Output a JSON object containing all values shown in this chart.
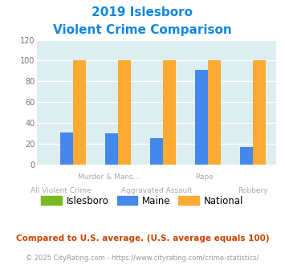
{
  "title_line1": "2019 Islesboro",
  "title_line2": "Violent Crime Comparison",
  "islesboro_values": [
    0,
    0,
    0,
    0,
    0
  ],
  "maine_values": [
    31,
    30,
    25,
    91,
    17
  ],
  "national_values": [
    100,
    100,
    100,
    100,
    100
  ],
  "islesboro_color": "#77bb22",
  "maine_color": "#4488ee",
  "national_color": "#ffaa33",
  "ylim": [
    0,
    120
  ],
  "yticks": [
    0,
    20,
    40,
    60,
    80,
    100,
    120
  ],
  "bg_color": "#ddeef0",
  "fig_bg": "#ffffff",
  "title_color": "#1188dd",
  "label_color": "#aaaaaa",
  "footer_note": "Compared to U.S. average. (U.S. average equals 100)",
  "footer_url": "© 2025 CityRating.com - https://www.cityrating.com/crime-statistics/",
  "bar_width": 0.28,
  "row1_labels": {
    "1": "Murder & Mans...",
    "3": "Rape"
  },
  "row2_labels": {
    "0": "All Violent Crime",
    "2": "Aggravated Assault",
    "4": "Robbery"
  }
}
